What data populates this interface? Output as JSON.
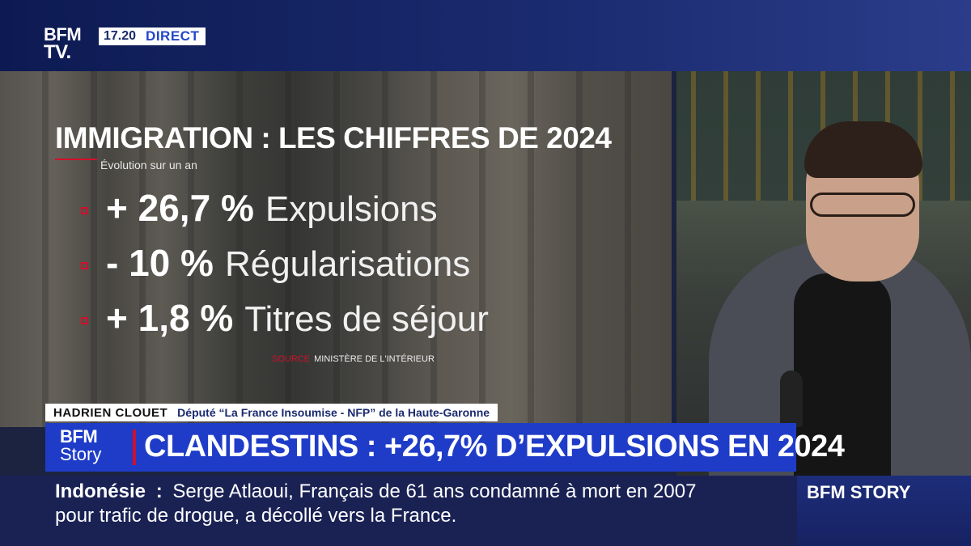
{
  "header": {
    "logo_line1": "BFM",
    "logo_line2": "TV.",
    "time": "17.20",
    "live_label": "DIRECT"
  },
  "infographic": {
    "title": "IMMIGRATION : LES CHIFFRES DE 2024",
    "subtitle": "Évolution sur un an",
    "stats": [
      {
        "value": "+ 26,7 %",
        "label": "Expulsions"
      },
      {
        "value": "- 10 %",
        "label": "Régularisations"
      },
      {
        "value": "+ 1,8 %",
        "label": "Titres de séjour"
      }
    ],
    "source_prefix": "SOURCE",
    "source": "MINISTÈRE DE L'INTÉRIEUR"
  },
  "lower_third": {
    "name": "HADRIEN CLOUET",
    "role": "Député “La France Insoumise - NFP” de la Haute-Garonne"
  },
  "headline": {
    "logo_top": "BFM",
    "logo_bottom": "Story",
    "text": "CLANDESTINS : +26,7% D’EXPULSIONS EN 2024"
  },
  "ticker": {
    "label": "Indonésie",
    "separator": ":",
    "line1": "Serge Atlaoui, Français de 61 ans condamné à mort en 2007",
    "line2": "pour trafic de drogue, a décollé vers la France."
  },
  "brand": {
    "label": "BFM STORY"
  },
  "colors": {
    "accent_red": "#d0102a",
    "headline_blue": "#1f3cc8",
    "ticker_navy": "#1a2254"
  }
}
